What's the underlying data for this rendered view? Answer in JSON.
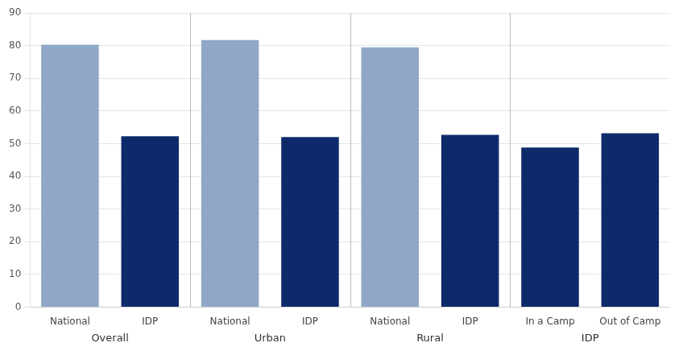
{
  "chart_data": {
    "type": "bar",
    "groups": [
      {
        "label": "Overall",
        "categories": [
          "National",
          "IDP"
        ],
        "values": [
          80.3,
          52.3
        ],
        "colors": [
          "#8fa8c8",
          "#0d2b6b"
        ]
      },
      {
        "label": "Urban",
        "categories": [
          "National",
          "IDP"
        ],
        "values": [
          81.7,
          52.0
        ],
        "colors": [
          "#8fa8c8",
          "#0d2b6b"
        ]
      },
      {
        "label": "Rural",
        "categories": [
          "National",
          "IDP"
        ],
        "values": [
          79.5,
          52.7
        ],
        "colors": [
          "#8fa8c8",
          "#0d2b6b"
        ]
      },
      {
        "label": "IDP",
        "categories": [
          "In a Camp",
          "Out of Camp"
        ],
        "values": [
          48.8,
          53.2
        ],
        "colors": [
          "#0d2b6b",
          "#0d2b6b"
        ]
      }
    ],
    "ylim": [
      0,
      90
    ],
    "yticks": [
      0,
      10,
      20,
      30,
      40,
      50,
      60,
      70,
      80,
      90
    ],
    "grid": true
  }
}
